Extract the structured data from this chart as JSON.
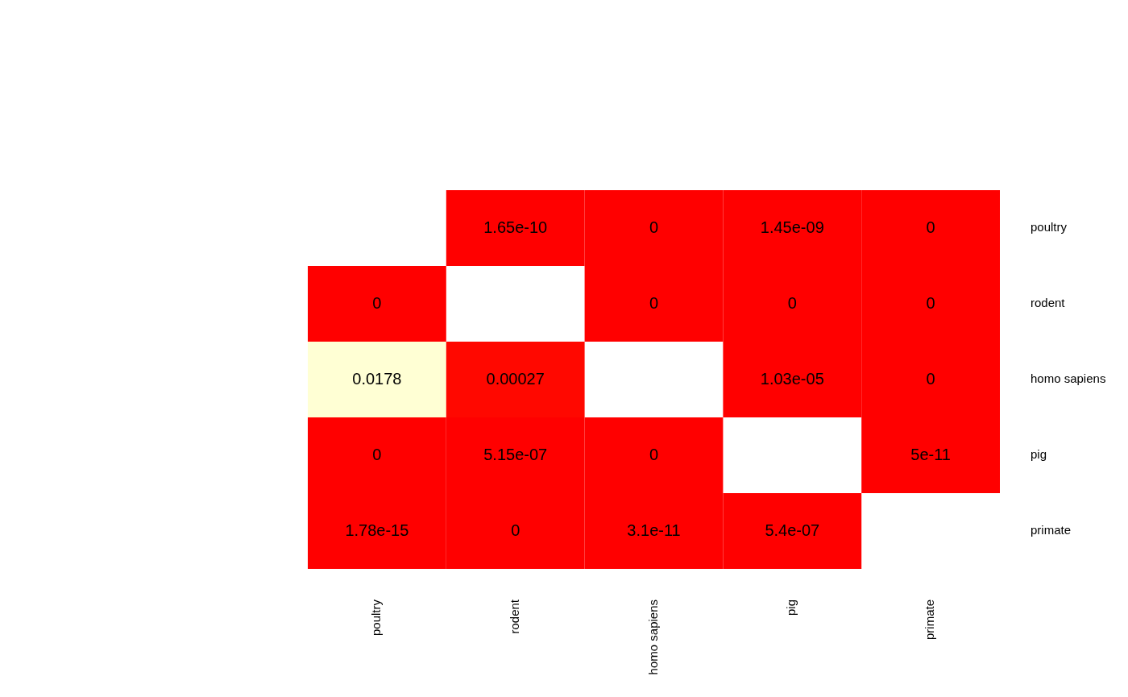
{
  "chart_data": {
    "type": "heatmap",
    "categories": [
      "poultry",
      "rodent",
      "homo sapiens",
      "pig",
      "primate"
    ],
    "y_categories": [
      "poultry",
      "rodent",
      "homo sapiens",
      "pig",
      "primate"
    ],
    "cells": [
      [
        null,
        1.65e-10,
        0,
        1.45e-09,
        0
      ],
      [
        0,
        null,
        0,
        0,
        0
      ],
      [
        0.0178,
        0.00027,
        null,
        1.03e-05,
        0
      ],
      [
        0,
        5.15e-07,
        0,
        null,
        5e-11
      ],
      [
        1.78e-15,
        0,
        3.1e-11,
        5.4e-07,
        null
      ]
    ],
    "data_labels": true
  }
}
